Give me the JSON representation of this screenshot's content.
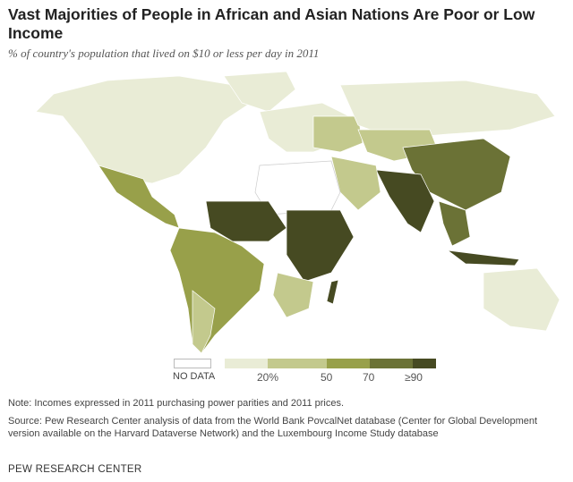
{
  "title": "Vast Majorities of People in African and Asian Nations Are Poor or Low Income",
  "subtitle": "% of country's population that lived on $10 or less per day in 2011",
  "legend": {
    "no_data_label": "NO DATA",
    "colors": {
      "no_data": "#ffffff",
      "lt20": "#e9ecd6",
      "20_50": "#c3c98d",
      "50_70": "#98a04a",
      "70_90": "#6b7236",
      "ge90": "#464a22"
    },
    "ticks": [
      "20%",
      "50",
      "70",
      "≥90"
    ]
  },
  "note": "Note: Incomes expressed in 2011 purchasing power parities and 2011 prices.",
  "source": "Source: Pew Research Center analysis of data from the World Bank PovcalNet database (Center for Global Development version available on the Harvard Dataverse Network) and the Luxembourg Income Study database",
  "brand": "PEW RESEARCH CENTER"
}
